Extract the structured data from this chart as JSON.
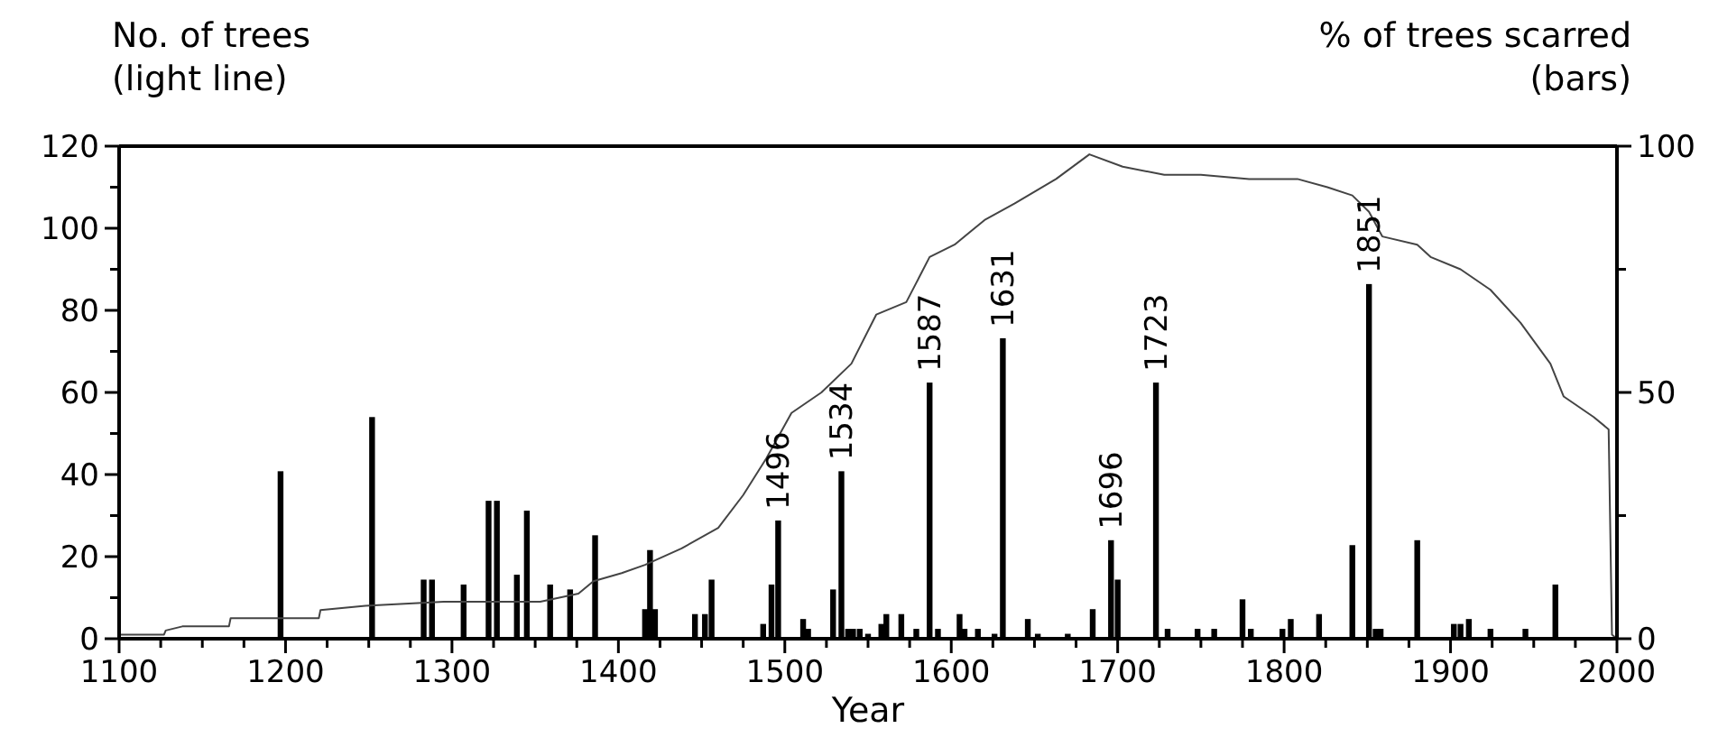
{
  "chart_data": {
    "type": "bar",
    "xlabel": "Year",
    "ylabel": "No. of trees\n(light line)",
    "y2label": "% of trees scarred\n(bars)",
    "xlim": [
      1100,
      2000
    ],
    "xticks": [
      1100,
      {
        "value": 1125,
        "label": null
      },
      {
        "value": 1150,
        "label": null
      },
      {
        "value": 1175,
        "label": null
      },
      1200,
      {
        "value": 1225,
        "label": null
      },
      {
        "value": 1250,
        "label": null
      },
      {
        "value": 1275,
        "label": null
      },
      1300,
      {
        "value": 1325,
        "label": null
      },
      {
        "value": 1350,
        "label": null
      },
      {
        "value": 1375,
        "label": null
      },
      1400,
      {
        "value": 1425,
        "label": null
      },
      {
        "value": 1450,
        "label": null
      },
      {
        "value": 1475,
        "label": null
      },
      1500,
      {
        "value": 1525,
        "label": null
      },
      {
        "value": 1550,
        "label": null
      },
      {
        "value": 1575,
        "label": null
      },
      1600,
      {
        "value": 1625,
        "label": null
      },
      {
        "value": 1650,
        "label": null
      },
      {
        "value": 1675,
        "label": null
      },
      1700,
      {
        "value": 1725,
        "label": null
      },
      {
        "value": 1750,
        "label": null
      },
      {
        "value": 1775,
        "label": null
      },
      1800,
      {
        "value": 1825,
        "label": null
      },
      {
        "value": 1850,
        "label": null
      },
      {
        "value": 1875,
        "label": null
      },
      1900,
      {
        "value": 1925,
        "label": null
      },
      {
        "value": 1950,
        "label": null
      },
      {
        "value": 1975,
        "label": null
      },
      2000
    ],
    "ylim": [
      0,
      120
    ],
    "yticks": [
      0,
      {
        "value": 10,
        "label": null
      },
      20,
      {
        "value": 30,
        "label": null
      },
      40,
      {
        "value": 50,
        "label": null
      },
      60,
      {
        "value": 70,
        "label": null
      },
      80,
      {
        "value": 90,
        "label": null
      },
      100,
      {
        "value": 110,
        "label": null
      },
      120
    ],
    "y2lim": [
      0,
      100
    ],
    "y2ticks": [
      0,
      {
        "value": 25,
        "label": null
      },
      50,
      {
        "value": 75,
        "label": null
      },
      100
    ],
    "series": [
      {
        "axis": "y2",
        "color": "#000000",
        "x": [
          1197,
          1252,
          1283,
          1288,
          1307,
          1322,
          1327,
          1339,
          1345,
          1359,
          1371,
          1386,
          1416,
          1419,
          1422,
          1446,
          1452,
          1456,
          1487,
          1492,
          1496,
          1511,
          1514,
          1529,
          1534,
          1538,
          1541,
          1545,
          1550,
          1558,
          1561,
          1570,
          1579,
          1587,
          1592,
          1605,
          1608,
          1616,
          1626,
          1631,
          1646,
          1652,
          1670,
          1685,
          1696,
          1700,
          1723,
          1730,
          1748,
          1758,
          1775,
          1780,
          1799,
          1804,
          1821,
          1841,
          1851,
          1855,
          1858,
          1880,
          1902,
          1906,
          1911,
          1924,
          1945,
          1963
        ],
        "values": [
          34,
          45,
          12,
          12,
          11,
          28,
          28,
          13,
          26,
          11,
          10,
          21,
          6,
          18,
          6,
          5,
          5,
          12,
          3,
          11,
          24,
          4,
          2,
          10,
          34,
          2,
          2,
          2,
          1,
          3,
          5,
          5,
          2,
          52,
          2,
          5,
          2,
          2,
          1,
          61,
          4,
          1,
          1,
          6,
          20,
          12,
          52,
          2,
          2,
          2,
          8,
          2,
          2,
          4,
          5,
          19,
          72,
          2,
          2,
          20,
          3,
          3,
          4,
          2,
          2,
          11
        ]
      },
      {
        "type": "line",
        "axis": "y",
        "color": "#444444",
        "x": [
          1100,
          1127,
          1128,
          1138,
          1166,
          1167,
          1220,
          1221,
          1248,
          1295,
          1331,
          1353,
          1376,
          1385,
          1402,
          1416,
          1438,
          1460,
          1475,
          1489,
          1504,
          1522,
          1540,
          1555,
          1573,
          1587,
          1602,
          1620,
          1638,
          1663,
          1683,
          1703,
          1728,
          1750,
          1779,
          1808,
          1826,
          1841,
          1851,
          1859,
          1880,
          1888,
          1906,
          1924,
          1942,
          1960,
          1968,
          1986,
          1995,
          1997,
          2000
        ],
        "values": [
          1,
          1,
          2,
          3,
          3,
          5,
          5,
          7,
          8,
          9,
          9,
          9,
          11,
          14,
          16,
          18,
          22,
          27,
          35,
          44,
          55,
          60,
          67,
          79,
          82,
          93,
          96,
          102,
          106,
          112,
          118,
          115,
          113,
          113,
          112,
          112,
          110,
          108,
          104,
          98,
          96,
          93,
          90,
          85,
          77,
          67,
          59,
          54,
          51,
          1,
          0
        ]
      }
    ],
    "annotations": [
      {
        "text": "1496",
        "x": 1496,
        "y": 24
      },
      {
        "text": "1534",
        "x": 1534,
        "y": 34
      },
      {
        "text": "1587",
        "x": 1587,
        "y": 52
      },
      {
        "text": "1631",
        "x": 1631,
        "y": 61
      },
      {
        "text": "1696",
        "x": 1696,
        "y": 20
      },
      {
        "text": "1723",
        "x": 1723,
        "y": 52
      },
      {
        "text": "1851",
        "x": 1851,
        "y": 72
      }
    ],
    "grid": false
  }
}
